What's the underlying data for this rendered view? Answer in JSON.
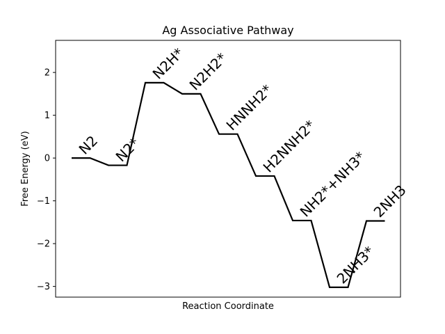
{
  "chart_data": {
    "type": "line",
    "title": "Ag Associative Pathway",
    "xlabel": "Reaction Coordinate",
    "ylabel": "Free Energy (eV)",
    "ylim": [
      -3.25,
      2.75
    ],
    "yticks": [
      2,
      1,
      0,
      -1,
      -2,
      -3
    ],
    "ytick_labels": [
      "2",
      "1",
      "0",
      "−1",
      "−2",
      "−3"
    ],
    "grid": false,
    "line_color": "#000000",
    "steps": [
      {
        "label": "N2",
        "energy": 0.0
      },
      {
        "label": "N2*",
        "energy": -0.17
      },
      {
        "label": "N2H*",
        "energy": 1.76
      },
      {
        "label": "N2H2*",
        "energy": 1.5
      },
      {
        "label": "HNNH2*",
        "energy": 0.56
      },
      {
        "label": "H2NNH2*",
        "energy": -0.42
      },
      {
        "label": "NH2*+NH3*",
        "energy": -1.46
      },
      {
        "label": "2NH3*",
        "energy": -3.02
      },
      {
        "label": "2NH3",
        "energy": -1.47
      }
    ]
  }
}
